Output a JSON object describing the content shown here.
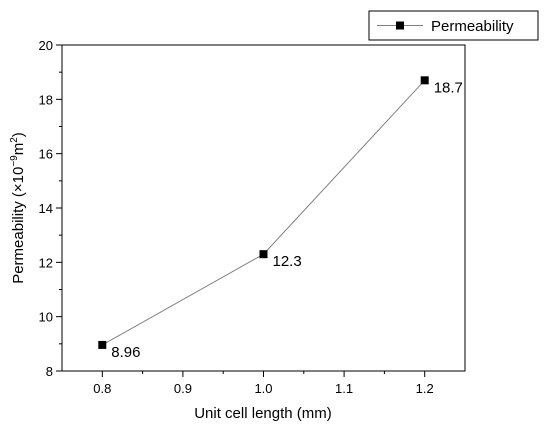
{
  "chart_data": {
    "type": "line",
    "title": "",
    "xlabel": "Unit cell length (mm)",
    "ylabel_main": "Permeability (×10",
    "ylabel_exp": "−9",
    "ylabel_unit": "m",
    "ylabel_unit_exp": "2",
    "ylabel_close": ")",
    "xlim": [
      0.75,
      1.25
    ],
    "ylim": [
      8,
      20
    ],
    "xticks": [
      0.8,
      0.9,
      1.0,
      1.1,
      1.2
    ],
    "xtick_labels": [
      "0.8",
      "0.9",
      "1.0",
      "1.1",
      "1.2"
    ],
    "yticks": [
      8,
      10,
      12,
      14,
      16,
      18,
      20
    ],
    "ytick_labels": [
      "8",
      "10",
      "12",
      "14",
      "16",
      "18",
      "20"
    ],
    "grid": false,
    "legend_position": "top-right",
    "series": [
      {
        "name": "Permeability",
        "color": "#000000",
        "line_color": "#808080",
        "marker": "square",
        "x": [
          0.8,
          1.0,
          1.2
        ],
        "y": [
          8.96,
          12.3,
          18.7
        ],
        "labels": [
          "8.96",
          "12.3",
          "18.7"
        ]
      }
    ]
  }
}
